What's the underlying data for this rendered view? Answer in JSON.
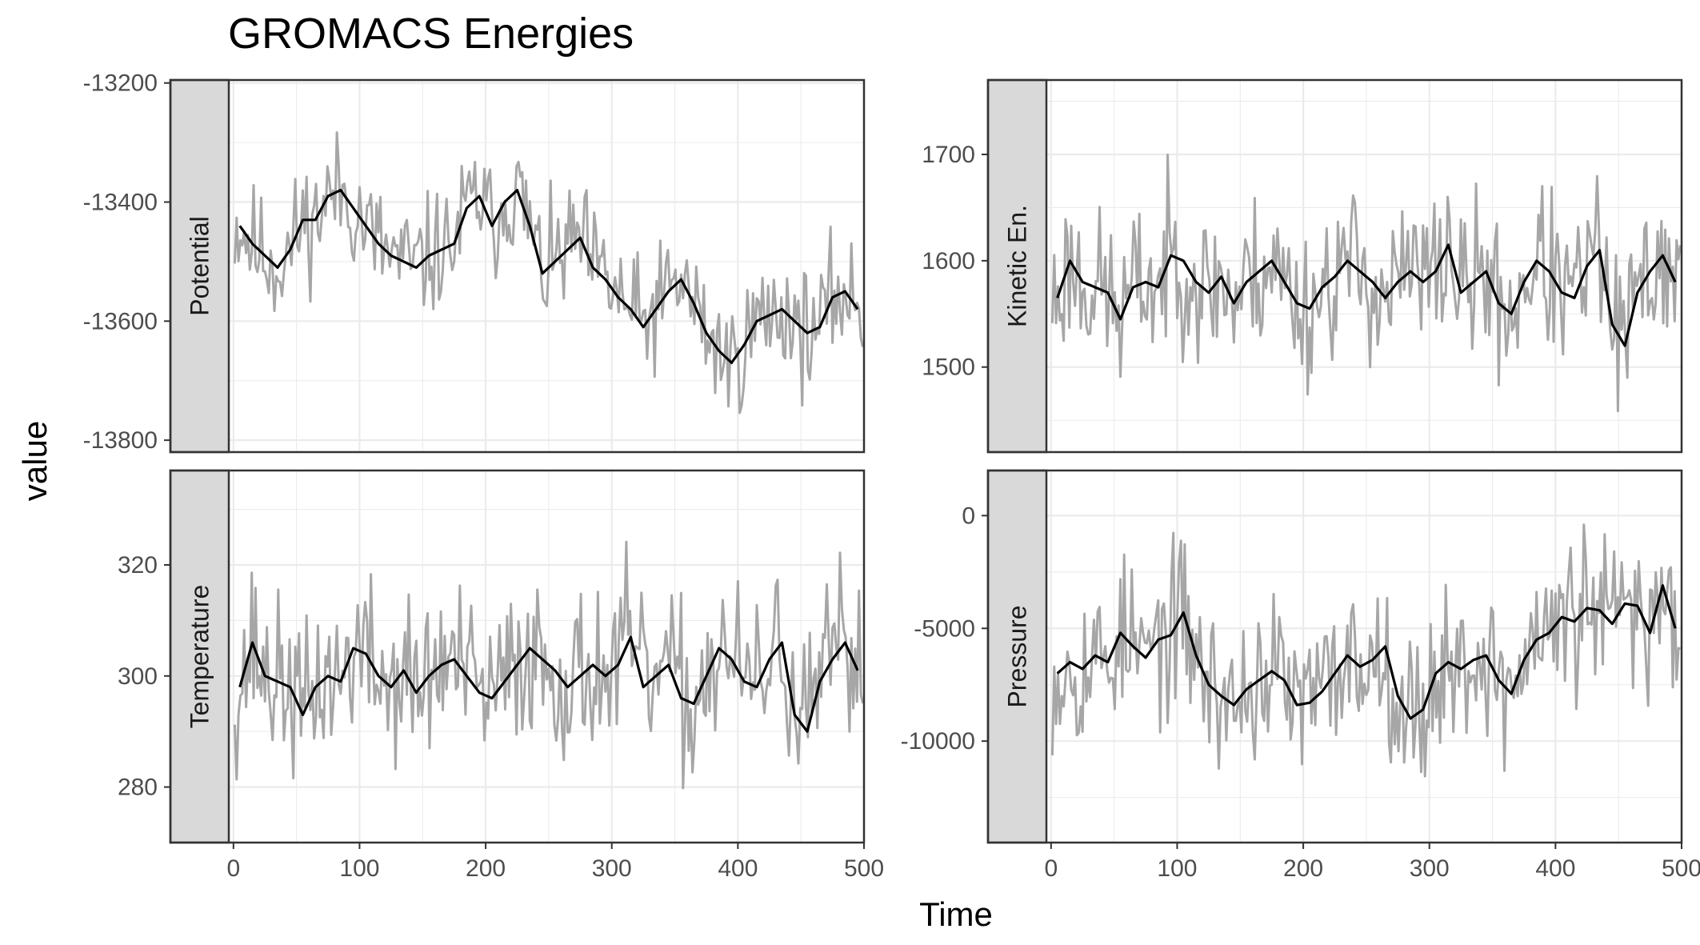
{
  "title": "GROMACS Energies",
  "xlabel": "Time",
  "ylabel": "value",
  "colors": {
    "raw_line": "#a6a6a6",
    "smooth_line": "#000000",
    "grid": "#ebebeb",
    "strip_fill": "#d9d9d9",
    "panel_border": "#333333",
    "tick_text": "#4d4d4d"
  },
  "chart_data": {
    "type": "line",
    "facets": [
      {
        "name": "Potential",
        "grid_col": 0,
        "grid_row": 0,
        "xlim": [
          -50,
          500
        ],
        "ylim": [
          -13820,
          -13195
        ],
        "xticks": [],
        "yticks": [
          -13200,
          -13400,
          -13600,
          -13800
        ],
        "ytick_labels": [
          "-13200",
          "-13400",
          "-13600",
          "-13800"
        ],
        "noise_amp": 75,
        "seed": 11,
        "smooth_points": [
          [
            5,
            -13440
          ],
          [
            15,
            -13470
          ],
          [
            25,
            -13490
          ],
          [
            35,
            -13510
          ],
          [
            45,
            -13480
          ],
          [
            55,
            -13430
          ],
          [
            65,
            -13430
          ],
          [
            75,
            -13390
          ],
          [
            85,
            -13380
          ],
          [
            95,
            -13410
          ],
          [
            105,
            -13440
          ],
          [
            115,
            -13470
          ],
          [
            125,
            -13490
          ],
          [
            135,
            -13500
          ],
          [
            145,
            -13510
          ],
          [
            155,
            -13490
          ],
          [
            165,
            -13480
          ],
          [
            175,
            -13470
          ],
          [
            185,
            -13410
          ],
          [
            195,
            -13390
          ],
          [
            205,
            -13440
          ],
          [
            215,
            -13400
          ],
          [
            225,
            -13380
          ],
          [
            235,
            -13440
          ],
          [
            245,
            -13520
          ],
          [
            255,
            -13500
          ],
          [
            265,
            -13480
          ],
          [
            275,
            -13460
          ],
          [
            285,
            -13510
          ],
          [
            295,
            -13530
          ],
          [
            305,
            -13560
          ],
          [
            315,
            -13580
          ],
          [
            325,
            -13610
          ],
          [
            335,
            -13580
          ],
          [
            345,
            -13550
          ],
          [
            355,
            -13530
          ],
          [
            365,
            -13570
          ],
          [
            375,
            -13620
          ],
          [
            385,
            -13650
          ],
          [
            395,
            -13670
          ],
          [
            405,
            -13640
          ],
          [
            415,
            -13600
          ],
          [
            425,
            -13590
          ],
          [
            435,
            -13580
          ],
          [
            445,
            -13600
          ],
          [
            455,
            -13620
          ],
          [
            465,
            -13610
          ],
          [
            475,
            -13560
          ],
          [
            485,
            -13550
          ],
          [
            495,
            -13580
          ]
        ]
      },
      {
        "name": "Kinetic En.",
        "grid_col": 1,
        "grid_row": 0,
        "xlim": [
          -50,
          500
        ],
        "ylim": [
          1420,
          1770
        ],
        "xticks": [],
        "yticks": [
          1500,
          1600,
          1700
        ],
        "ytick_labels": [
          "1500",
          "1600",
          "1700"
        ],
        "noise_amp": 55,
        "seed": 23,
        "smooth_points": [
          [
            5,
            1565
          ],
          [
            15,
            1600
          ],
          [
            25,
            1580
          ],
          [
            35,
            1575
          ],
          [
            45,
            1570
          ],
          [
            55,
            1545
          ],
          [
            65,
            1575
          ],
          [
            75,
            1580
          ],
          [
            85,
            1575
          ],
          [
            95,
            1605
          ],
          [
            105,
            1600
          ],
          [
            115,
            1580
          ],
          [
            125,
            1570
          ],
          [
            135,
            1585
          ],
          [
            145,
            1560
          ],
          [
            155,
            1580
          ],
          [
            165,
            1590
          ],
          [
            175,
            1600
          ],
          [
            185,
            1580
          ],
          [
            195,
            1560
          ],
          [
            205,
            1555
          ],
          [
            215,
            1575
          ],
          [
            225,
            1585
          ],
          [
            235,
            1600
          ],
          [
            245,
            1590
          ],
          [
            255,
            1580
          ],
          [
            265,
            1565
          ],
          [
            275,
            1580
          ],
          [
            285,
            1590
          ],
          [
            295,
            1580
          ],
          [
            305,
            1590
          ],
          [
            315,
            1615
          ],
          [
            325,
            1570
          ],
          [
            335,
            1580
          ],
          [
            345,
            1590
          ],
          [
            355,
            1560
          ],
          [
            365,
            1550
          ],
          [
            375,
            1580
          ],
          [
            385,
            1600
          ],
          [
            395,
            1590
          ],
          [
            405,
            1570
          ],
          [
            415,
            1565
          ],
          [
            425,
            1595
          ],
          [
            435,
            1610
          ],
          [
            445,
            1540
          ],
          [
            455,
            1520
          ],
          [
            465,
            1570
          ],
          [
            475,
            1590
          ],
          [
            485,
            1605
          ],
          [
            495,
            1580
          ]
        ]
      },
      {
        "name": "Temperature",
        "grid_col": 0,
        "grid_row": 1,
        "xlim": [
          -50,
          500
        ],
        "ylim": [
          270,
          337
        ],
        "xticks": [
          0,
          100,
          200,
          300,
          400,
          500
        ],
        "xtick_labels": [
          "0",
          "100",
          "200",
          "300",
          "400",
          "500"
        ],
        "yticks": [
          280,
          300,
          320
        ],
        "ytick_labels": [
          "280",
          "300",
          "320"
        ],
        "noise_amp": 11,
        "seed": 37,
        "smooth_points": [
          [
            5,
            298
          ],
          [
            15,
            306
          ],
          [
            25,
            300
          ],
          [
            35,
            299
          ],
          [
            45,
            298
          ],
          [
            55,
            293
          ],
          [
            65,
            298
          ],
          [
            75,
            300
          ],
          [
            85,
            299
          ],
          [
            95,
            305
          ],
          [
            105,
            304
          ],
          [
            115,
            300
          ],
          [
            125,
            298
          ],
          [
            135,
            301
          ],
          [
            145,
            297
          ],
          [
            155,
            300
          ],
          [
            165,
            302
          ],
          [
            175,
            303
          ],
          [
            185,
            300
          ],
          [
            195,
            297
          ],
          [
            205,
            296
          ],
          [
            215,
            299
          ],
          [
            225,
            302
          ],
          [
            235,
            305
          ],
          [
            245,
            303
          ],
          [
            255,
            301
          ],
          [
            265,
            298
          ],
          [
            275,
            300
          ],
          [
            285,
            302
          ],
          [
            295,
            300
          ],
          [
            305,
            302
          ],
          [
            315,
            307
          ],
          [
            325,
            298
          ],
          [
            335,
            300
          ],
          [
            345,
            302
          ],
          [
            355,
            296
          ],
          [
            365,
            295
          ],
          [
            375,
            300
          ],
          [
            385,
            305
          ],
          [
            395,
            303
          ],
          [
            405,
            299
          ],
          [
            415,
            298
          ],
          [
            425,
            303
          ],
          [
            435,
            306
          ],
          [
            445,
            293
          ],
          [
            455,
            290
          ],
          [
            465,
            299
          ],
          [
            475,
            303
          ],
          [
            485,
            306
          ],
          [
            495,
            301
          ]
        ]
      },
      {
        "name": "Pressure",
        "grid_col": 1,
        "grid_row": 1,
        "xlim": [
          -50,
          500
        ],
        "ylim": [
          -14500,
          2000
        ],
        "xticks": [
          0,
          100,
          200,
          300,
          400,
          500
        ],
        "xtick_labels": [
          "0",
          "100",
          "200",
          "300",
          "400",
          "500"
        ],
        "yticks": [
          -10000,
          -5000,
          0
        ],
        "ytick_labels": [
          "-10000",
          "-5000",
          "0"
        ],
        "noise_amp": 2600,
        "seed": 53,
        "smooth_points": [
          [
            5,
            -7000
          ],
          [
            15,
            -6500
          ],
          [
            25,
            -6800
          ],
          [
            35,
            -6200
          ],
          [
            45,
            -6500
          ],
          [
            55,
            -5200
          ],
          [
            65,
            -5800
          ],
          [
            75,
            -6300
          ],
          [
            85,
            -5500
          ],
          [
            95,
            -5300
          ],
          [
            105,
            -4300
          ],
          [
            115,
            -6200
          ],
          [
            125,
            -7500
          ],
          [
            135,
            -8000
          ],
          [
            145,
            -8400
          ],
          [
            155,
            -7700
          ],
          [
            165,
            -7300
          ],
          [
            175,
            -6900
          ],
          [
            185,
            -7300
          ],
          [
            195,
            -8400
          ],
          [
            205,
            -8300
          ],
          [
            215,
            -7800
          ],
          [
            225,
            -7000
          ],
          [
            235,
            -6200
          ],
          [
            245,
            -6700
          ],
          [
            255,
            -6400
          ],
          [
            265,
            -5800
          ],
          [
            275,
            -8000
          ],
          [
            285,
            -9000
          ],
          [
            295,
            -8600
          ],
          [
            305,
            -7000
          ],
          [
            315,
            -6500
          ],
          [
            325,
            -6800
          ],
          [
            335,
            -6400
          ],
          [
            345,
            -6200
          ],
          [
            355,
            -7300
          ],
          [
            365,
            -7900
          ],
          [
            375,
            -6400
          ],
          [
            385,
            -5500
          ],
          [
            395,
            -5200
          ],
          [
            405,
            -4500
          ],
          [
            415,
            -4700
          ],
          [
            425,
            -4100
          ],
          [
            435,
            -4200
          ],
          [
            445,
            -4800
          ],
          [
            455,
            -3900
          ],
          [
            465,
            -4000
          ],
          [
            475,
            -5200
          ],
          [
            485,
            -3100
          ],
          [
            495,
            -5000
          ]
        ]
      }
    ]
  }
}
